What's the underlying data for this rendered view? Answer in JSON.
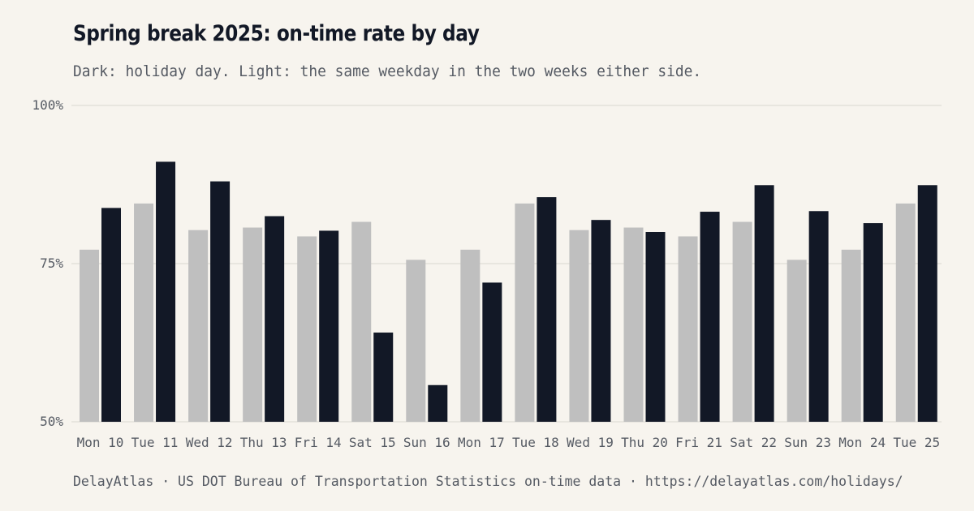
{
  "title": "Spring break 2025: on-time rate by day",
  "subtitle": "Dark: holiday day. Light: the same weekday in the two weeks either side.",
  "footer": "DelayAtlas · US DOT Bureau of Transportation Statistics on-time data · https://delayatlas.com/holidays/",
  "colors": {
    "holiday": "#121826",
    "baseline": "#bfbfbf",
    "grid": "#e4e1da",
    "background": "#f7f4ee"
  },
  "chart_data": {
    "type": "bar",
    "categories": [
      "Mon 10",
      "Tue 11",
      "Wed 12",
      "Thu 13",
      "Fri 14",
      "Sat 15",
      "Sun 16",
      "Mon 17",
      "Tue 18",
      "Wed 19",
      "Thu 20",
      "Fri 21",
      "Sat 22",
      "Sun 23",
      "Mon 24",
      "Tue 25"
    ],
    "series": [
      {
        "role": "baseline",
        "values": [
          77.2,
          84.5,
          80.3,
          80.7,
          79.3,
          81.6,
          75.6,
          77.2,
          84.5,
          80.3,
          80.7,
          79.3,
          81.6,
          75.6,
          77.2,
          84.5
        ]
      },
      {
        "role": "holiday",
        "values": [
          83.8,
          91.1,
          88.0,
          82.5,
          80.2,
          64.1,
          55.8,
          72.0,
          85.5,
          81.9,
          80.0,
          83.2,
          87.4,
          83.3,
          81.4,
          87.4
        ]
      }
    ],
    "y_ticks": [
      "50%",
      "75%",
      "100%"
    ],
    "y_tick_values": [
      50,
      75,
      100
    ],
    "ylim": [
      50,
      100
    ],
    "grid": true,
    "legend": "none"
  }
}
